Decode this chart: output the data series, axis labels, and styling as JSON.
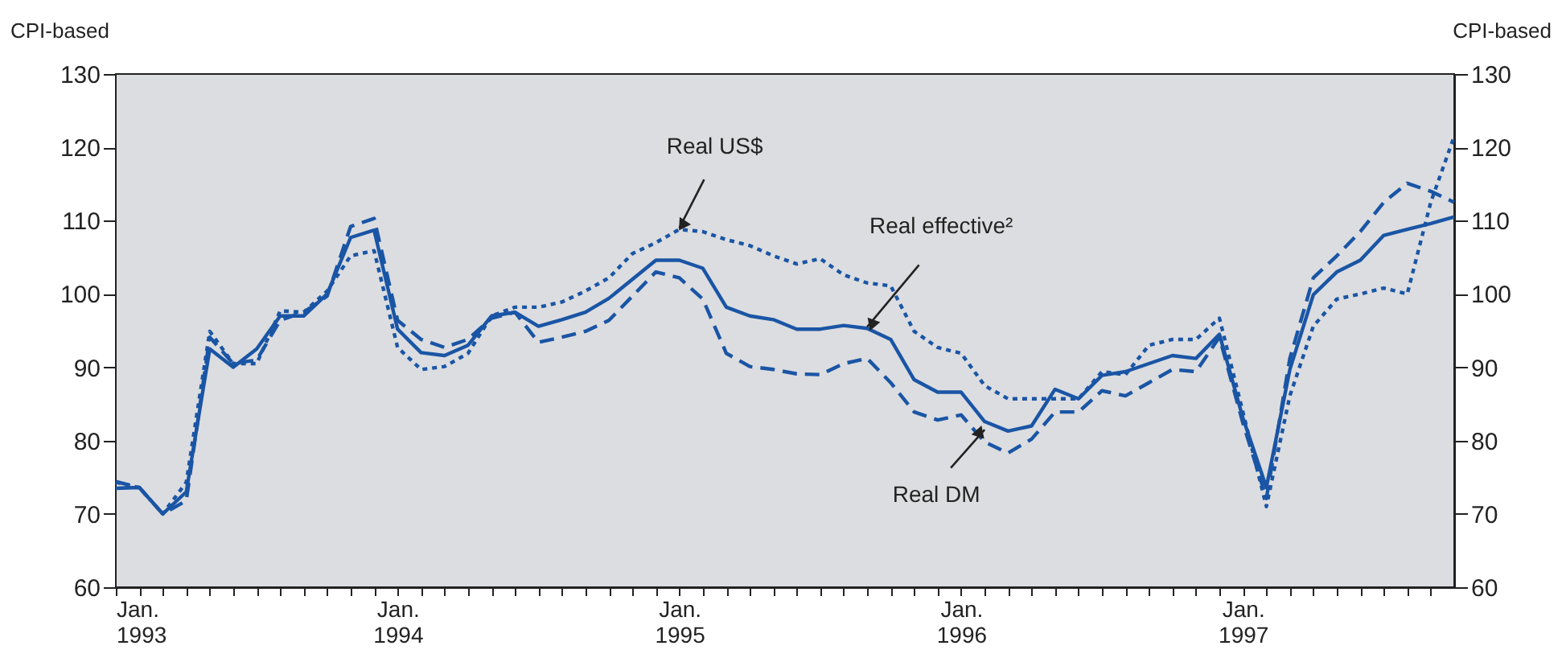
{
  "chart_data": {
    "type": "line",
    "ylabel": "CPI-based",
    "y2label": "CPI-based",
    "x": [
      "1993-01",
      "1993-02",
      "1993-03",
      "1993-04",
      "1993-05",
      "1993-06",
      "1993-07",
      "1993-08",
      "1993-09",
      "1993-10",
      "1993-11",
      "1993-12",
      "1994-01",
      "1994-02",
      "1994-03",
      "1994-04",
      "1994-05",
      "1994-06",
      "1994-07",
      "1994-08",
      "1994-09",
      "1994-10",
      "1994-11",
      "1994-12",
      "1995-01",
      "1995-02",
      "1995-03",
      "1995-04",
      "1995-05",
      "1995-06",
      "1995-07",
      "1995-08",
      "1995-09",
      "1995-10",
      "1995-11",
      "1995-12",
      "1996-01",
      "1996-02",
      "1996-03",
      "1996-04",
      "1996-05",
      "1996-06",
      "1996-07",
      "1996-08",
      "1996-09",
      "1996-10",
      "1996-11",
      "1996-12",
      "1997-01",
      "1997-02",
      "1997-03",
      "1997-04",
      "1997-05",
      "1997-06",
      "1997-07",
      "1997-08",
      "1997-09",
      "1997-10"
    ],
    "series": [
      {
        "color": "#1a55a5",
        "line_style": "solid",
        "values": [
          73.5,
          73.6,
          70,
          73,
          92.5,
          90,
          92.5,
          97,
          97,
          100,
          107.7,
          108.7,
          95.2,
          92,
          91.6,
          93,
          97,
          97.5,
          95.6,
          96.5,
          97.5,
          99.4,
          102,
          104.6,
          104.6,
          103.5,
          98.2,
          97,
          96.5,
          95.2,
          95.2,
          95.7,
          95.3,
          93.8,
          88.3,
          86.6,
          86.6,
          82.6,
          81.3,
          82,
          87,
          85.7,
          88.9,
          89.4,
          90.5,
          91.6,
          91.2,
          94.5,
          83.1,
          73.6,
          89.7,
          99.9,
          103,
          104.6,
          108,
          108.8,
          109.6,
          110.5
        ]
      },
      {
        "color": "#1a55a5",
        "line_style": "dotted",
        "values": [
          74.3,
          73.6,
          70,
          74.3,
          94.9,
          90.5,
          90.5,
          97.7,
          97.5,
          100.4,
          105.2,
          105.9,
          92.7,
          89.7,
          90.1,
          91.9,
          97,
          98.2,
          98.2,
          98.9,
          100.4,
          102.2,
          105.5,
          107,
          108.8,
          108.5,
          107.4,
          106.6,
          105.2,
          104.1,
          104.8,
          102.6,
          101.5,
          101.1,
          94.9,
          92.7,
          91.9,
          87.5,
          85.7,
          85.7,
          85.7,
          85.7,
          89.4,
          89,
          93,
          93.8,
          93.8,
          96.7,
          83.9,
          71,
          86.1,
          95.6,
          99.3,
          100,
          100.8,
          100,
          112.5,
          121.5
        ]
      },
      {
        "color": "#1a55a5",
        "line_style": "dashed",
        "values": [
          74.4,
          73.6,
          70,
          71.8,
          94.1,
          90.5,
          91,
          96.4,
          97.5,
          99.7,
          109.2,
          110.3,
          96.4,
          93.8,
          92.7,
          93.8,
          96.7,
          97.5,
          93.4,
          94.1,
          94.9,
          96.4,
          99.7,
          103,
          102.2,
          99.3,
          91.9,
          90.1,
          89.7,
          89.1,
          89,
          90.5,
          91.2,
          87.9,
          83.9,
          82.8,
          83.5,
          79.8,
          78.3,
          80.2,
          83.9,
          83.9,
          86.8,
          86.1,
          87.9,
          89.7,
          89.4,
          94.1,
          82.4,
          72.1,
          91.2,
          102.2,
          105.2,
          108.5,
          112.5,
          115.1,
          114,
          112.5
        ]
      }
    ],
    "annotations": [
      {
        "text": "Real US$",
        "x": "1995-01",
        "y": 109
      },
      {
        "text": "Real effective²",
        "x": "1995-09",
        "y": 95.5
      },
      {
        "text": "Real DM",
        "x": "1996-02",
        "y": 81.5
      }
    ],
    "xlim": [
      "1993-01",
      "1997-10"
    ],
    "xticks": [
      {
        "value": "1993-01",
        "label": "Jan.\n1993"
      },
      {
        "value": "1993-02",
        "label": null
      },
      {
        "value": "1993-03",
        "label": null
      },
      {
        "value": "1993-04",
        "label": null
      },
      {
        "value": "1993-05",
        "label": null
      },
      {
        "value": "1993-06",
        "label": null
      },
      {
        "value": "1993-07",
        "label": null
      },
      {
        "value": "1993-08",
        "label": null
      },
      {
        "value": "1993-09",
        "label": null
      },
      {
        "value": "1993-10",
        "label": null
      },
      {
        "value": "1993-11",
        "label": null
      },
      {
        "value": "1993-12",
        "label": null
      },
      {
        "value": "1994-01",
        "label": "Jan.\n1994"
      },
      {
        "value": "1994-02",
        "label": null
      },
      {
        "value": "1994-03",
        "label": null
      },
      {
        "value": "1994-04",
        "label": null
      },
      {
        "value": "1994-05",
        "label": null
      },
      {
        "value": "1994-06",
        "label": null
      },
      {
        "value": "1994-07",
        "label": null
      },
      {
        "value": "1994-08",
        "label": null
      },
      {
        "value": "1994-09",
        "label": null
      },
      {
        "value": "1994-10",
        "label": null
      },
      {
        "value": "1994-11",
        "label": null
      },
      {
        "value": "1994-12",
        "label": null
      },
      {
        "value": "1995-01",
        "label": "Jan.\n1995"
      },
      {
        "value": "1995-02",
        "label": null
      },
      {
        "value": "1995-03",
        "label": null
      },
      {
        "value": "1995-04",
        "label": null
      },
      {
        "value": "1995-05",
        "label": null
      },
      {
        "value": "1995-06",
        "label": null
      },
      {
        "value": "1995-07",
        "label": null
      },
      {
        "value": "1995-08",
        "label": null
      },
      {
        "value": "1995-09",
        "label": null
      },
      {
        "value": "1995-10",
        "label": null
      },
      {
        "value": "1995-11",
        "label": null
      },
      {
        "value": "1995-12",
        "label": null
      },
      {
        "value": "1996-01",
        "label": "Jan.\n1996"
      },
      {
        "value": "1996-02",
        "label": null
      },
      {
        "value": "1996-03",
        "label": null
      },
      {
        "value": "1996-04",
        "label": null
      },
      {
        "value": "1996-05",
        "label": null
      },
      {
        "value": "1996-06",
        "label": null
      },
      {
        "value": "1996-07",
        "label": null
      },
      {
        "value": "1996-08",
        "label": null
      },
      {
        "value": "1996-09",
        "label": null
      },
      {
        "value": "1996-10",
        "label": null
      },
      {
        "value": "1996-11",
        "label": null
      },
      {
        "value": "1996-12",
        "label": null
      },
      {
        "value": "1997-01",
        "label": "Jan.\n1997"
      },
      {
        "value": "1997-02",
        "label": null
      },
      {
        "value": "1997-03",
        "label": null
      },
      {
        "value": "1997-04",
        "label": null
      },
      {
        "value": "1997-05",
        "label": null
      },
      {
        "value": "1997-06",
        "label": null
      },
      {
        "value": "1997-07",
        "label": null
      },
      {
        "value": "1997-08",
        "label": null
      },
      {
        "value": "1997-09",
        "label": null
      }
    ],
    "ylim": [
      60,
      130
    ],
    "yticks": [
      60,
      70,
      80,
      90,
      100,
      110,
      120,
      130
    ],
    "y2lim": [
      60,
      130
    ],
    "y2ticks": [
      60,
      70,
      80,
      90,
      100,
      110,
      120,
      130
    ],
    "marker": "none"
  }
}
